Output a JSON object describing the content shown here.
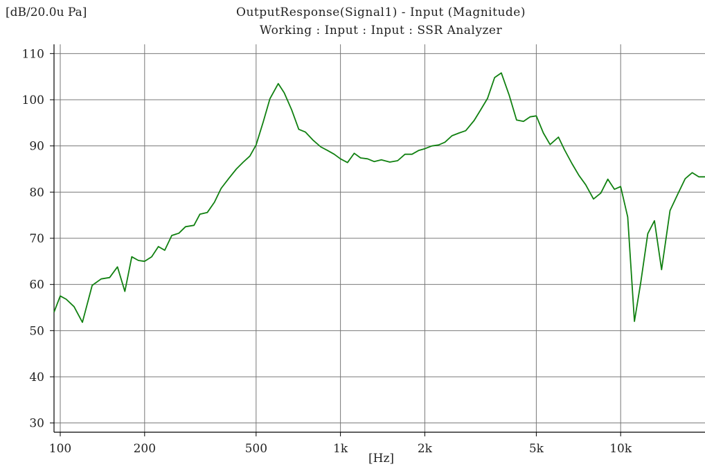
{
  "header": {
    "title": "OutputResponse(Signal1) - Input (Magnitude)",
    "subtitle": "Working : Input : Input : SSR Analyzer",
    "y_unit": "[dB/20.0u Pa]",
    "x_unit": "[Hz]"
  },
  "colors": {
    "line": "#108010",
    "grid": "#777777",
    "axis": "#000000"
  },
  "chart_data": {
    "type": "line",
    "title": "OutputResponse(Signal1) - Input (Magnitude)",
    "subtitle": "Working : Input : Input : SSR Analyzer",
    "xlabel": "[Hz]",
    "ylabel": "[dB/20.0u Pa]",
    "xscale": "log",
    "xlim": [
      95,
      20000
    ],
    "ylim": [
      28,
      112
    ],
    "grid": true,
    "x_ticks": [
      {
        "value": 100,
        "label": "100"
      },
      {
        "value": 200,
        "label": "200"
      },
      {
        "value": 500,
        "label": "500"
      },
      {
        "value": 1000,
        "label": "1k"
      },
      {
        "value": 2000,
        "label": "2k"
      },
      {
        "value": 5000,
        "label": "5k"
      },
      {
        "value": 10000,
        "label": "10k"
      }
    ],
    "y_ticks": [
      30,
      40,
      50,
      60,
      70,
      80,
      90,
      100,
      110
    ],
    "series": [
      {
        "x": [
          95,
          100,
          105,
          112,
          120,
          130,
          140,
          150,
          160,
          170,
          180,
          190,
          200,
          212,
          224,
          236,
          250,
          265,
          280,
          300,
          315,
          335,
          355,
          375,
          400,
          425,
          450,
          475,
          500,
          530,
          560,
          600,
          630,
          670,
          710,
          750,
          800,
          850,
          900,
          950,
          1000,
          1060,
          1120,
          1180,
          1250,
          1320,
          1400,
          1500,
          1600,
          1700,
          1800,
          1900,
          2000,
          2120,
          2240,
          2360,
          2500,
          2650,
          2800,
          3000,
          3150,
          3350,
          3550,
          3750,
          4000,
          4250,
          4500,
          4750,
          5000,
          5300,
          5600,
          6000,
          6300,
          6700,
          7100,
          7500,
          8000,
          8500,
          9000,
          9500,
          10000,
          10600,
          11200,
          11800,
          12500,
          13200,
          14000,
          15000,
          16000,
          17000,
          18000,
          19000,
          20000
        ],
        "y": [
          54,
          57.5,
          56.8,
          55.2,
          51.8,
          59.8,
          61.2,
          61.5,
          63.8,
          58.5,
          66.0,
          65.2,
          65.0,
          66.0,
          68.2,
          67.4,
          70.6,
          71.1,
          72.5,
          72.8,
          75.2,
          75.6,
          77.8,
          80.8,
          83.0,
          85.0,
          86.5,
          87.8,
          90.2,
          95.2,
          100.2,
          103.5,
          101.5,
          97.8,
          93.6,
          93.0,
          91.2,
          89.8,
          89.0,
          88.2,
          87.2,
          86.4,
          88.4,
          87.4,
          87.2,
          86.6,
          87.0,
          86.5,
          86.8,
          88.2,
          88.2,
          89.0,
          89.4,
          90.0,
          90.2,
          90.8,
          92.2,
          92.8,
          93.3,
          95.5,
          97.6,
          100.3,
          104.8,
          105.8,
          101.0,
          95.6,
          95.3,
          96.3,
          96.5,
          92.8,
          90.3,
          91.9,
          89.2,
          86.2,
          83.6,
          81.6,
          78.5,
          79.8,
          82.8,
          80.6,
          81.2,
          74.6,
          52.0,
          60.5,
          71.0,
          73.8,
          63.2,
          76.0,
          79.6,
          82.9,
          84.2,
          83.3,
          83.3
        ]
      }
    ]
  }
}
